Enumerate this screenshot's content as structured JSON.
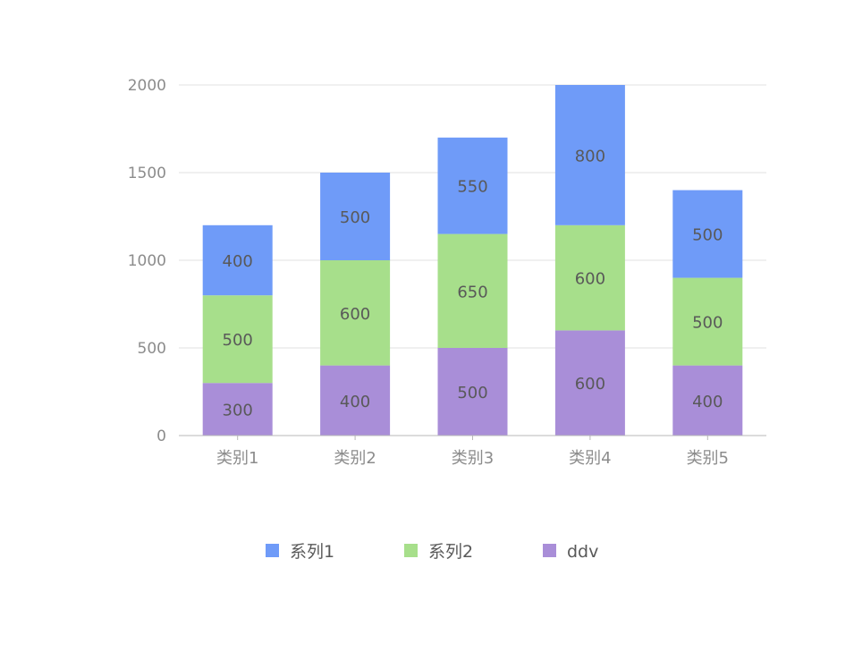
{
  "chart_data": {
    "type": "bar",
    "stacked": true,
    "categories": [
      "类别1",
      "类别2",
      "类别3",
      "类别4",
      "类别5"
    ],
    "series": [
      {
        "name": "ddv",
        "values": [
          300,
          400,
          500,
          600,
          400
        ],
        "color": "#a98ed8"
      },
      {
        "name": "系列2",
        "values": [
          500,
          600,
          650,
          600,
          500
        ],
        "color": "#a7df8b"
      },
      {
        "name": "系列1",
        "values": [
          400,
          500,
          550,
          800,
          500
        ],
        "color": "#6f9bf8"
      }
    ],
    "legend_order": [
      "系列1",
      "系列2",
      "ddv"
    ],
    "yticks": [
      0,
      500,
      1000,
      1500,
      2000
    ],
    "ylim": [
      0,
      2000
    ],
    "grid": true,
    "legend_position": "bottom",
    "title": "",
    "xlabel": "",
    "ylabel": ""
  }
}
